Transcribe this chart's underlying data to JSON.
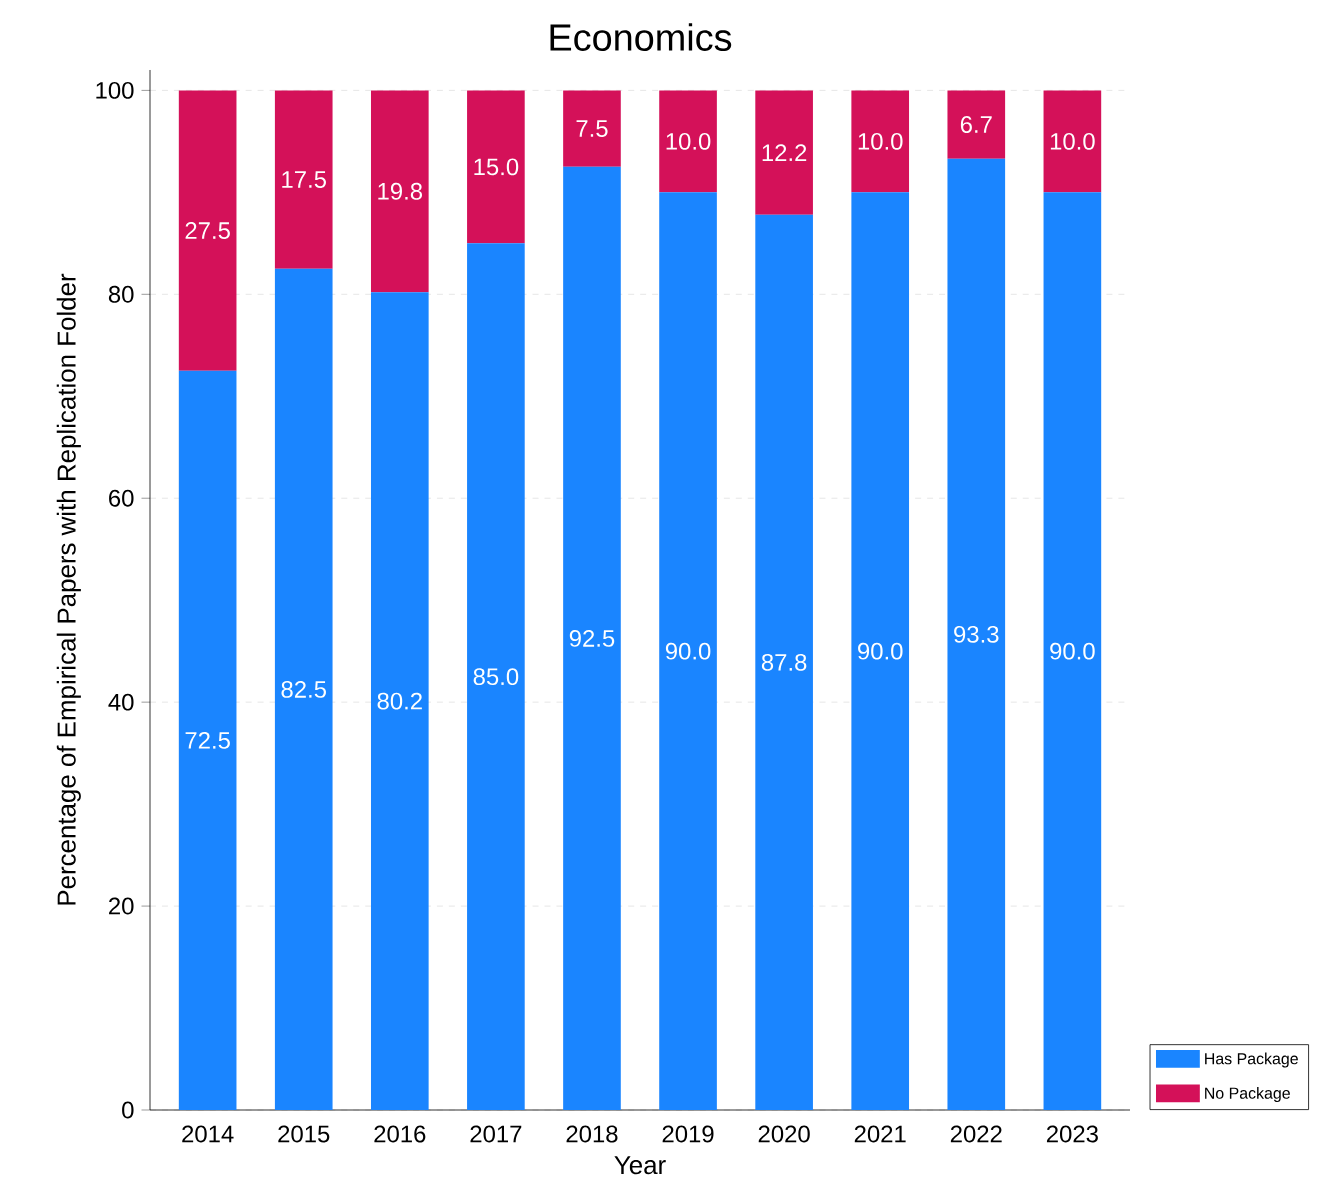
{
  "chart_data": {
    "type": "bar",
    "stacked": true,
    "title": "Economics",
    "xlabel": "Year",
    "ylabel": "Percentage of Empirical Papers with Replication Folder",
    "categories": [
      "2014",
      "2015",
      "2016",
      "2017",
      "2018",
      "2019",
      "2020",
      "2021",
      "2022",
      "2023"
    ],
    "series": [
      {
        "name": "Has Package",
        "color": "#1a85ff",
        "values": [
          72.5,
          82.5,
          80.2,
          85.0,
          92.5,
          90.0,
          87.8,
          90.0,
          93.3,
          90.0
        ],
        "value_labels": [
          "72.5",
          "82.5",
          "80.2",
          "85.0",
          "92.5",
          "90.0",
          "87.8",
          "90.0",
          "93.3",
          "90.0"
        ]
      },
      {
        "name": "No Package",
        "color": "#d41159",
        "values": [
          27.5,
          17.5,
          19.8,
          15.0,
          7.5,
          10.0,
          12.2,
          10.0,
          6.7,
          10.0
        ],
        "value_labels": [
          "27.5",
          "17.5",
          "19.8",
          "15.0",
          "7.5",
          "10.0",
          "12.2",
          "10.0",
          "6.7",
          "10.0"
        ]
      }
    ],
    "ylim": [
      0,
      102
    ],
    "yticks": [
      0,
      20,
      40,
      60,
      80,
      100
    ],
    "grid": "y",
    "legend": "bottom right"
  }
}
